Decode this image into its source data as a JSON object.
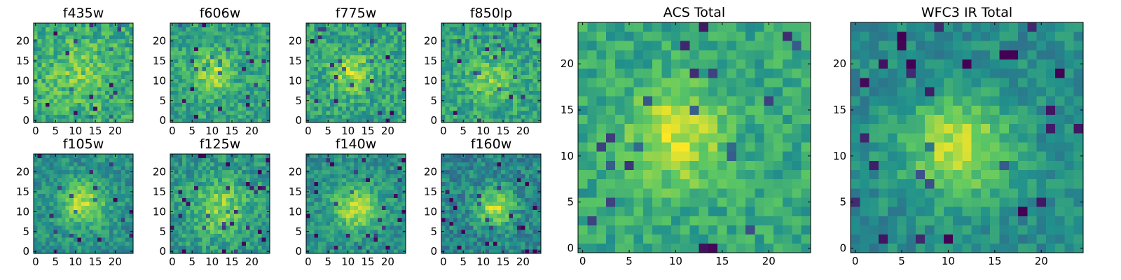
{
  "figure": {
    "colormap": "viridis",
    "background": "#ffffff",
    "colormap_stops": [
      "#440154",
      "#3b528b",
      "#21918c",
      "#5ec962",
      "#fde725"
    ]
  },
  "chart_data": [
    {
      "type": "heatmap",
      "title": "f435w",
      "grid_size": 25,
      "xlim": [
        0,
        24
      ],
      "ylim": [
        0,
        24
      ],
      "xticks": [
        0,
        5,
        10,
        15,
        20
      ],
      "yticks": [
        0,
        5,
        10,
        15,
        20
      ],
      "source_center": [
        11,
        12
      ],
      "source_sigma": 5,
      "source_amplitude": 0.15,
      "baseline": 0.62,
      "noise": 0.17,
      "seed": 11
    },
    {
      "type": "heatmap",
      "title": "f606w",
      "grid_size": 25,
      "xlim": [
        0,
        24
      ],
      "ylim": [
        0,
        24
      ],
      "xticks": [
        0,
        5,
        10,
        15,
        20
      ],
      "yticks": [
        0,
        5,
        10,
        15,
        20
      ],
      "source_center": [
        10,
        12
      ],
      "source_sigma": 3.5,
      "source_amplitude": 0.3,
      "baseline": 0.58,
      "noise": 0.15,
      "seed": 23
    },
    {
      "type": "heatmap",
      "title": "f775w",
      "grid_size": 25,
      "xlim": [
        0,
        24
      ],
      "ylim": [
        0,
        24
      ],
      "xticks": [
        0,
        5,
        10,
        15,
        20
      ],
      "yticks": [
        0,
        5,
        10,
        15,
        20
      ],
      "source_center": [
        11,
        12
      ],
      "source_sigma": 3.5,
      "source_amplitude": 0.3,
      "baseline": 0.58,
      "noise": 0.16,
      "seed": 37
    },
    {
      "type": "heatmap",
      "title": "f850lp",
      "grid_size": 25,
      "xlim": [
        0,
        24
      ],
      "ylim": [
        0,
        24
      ],
      "xticks": [
        0,
        5,
        10,
        15,
        20
      ],
      "yticks": [
        0,
        5,
        10,
        15,
        20
      ],
      "source_center": [
        12,
        10
      ],
      "source_sigma": 4,
      "source_amplitude": 0.2,
      "baseline": 0.58,
      "noise": 0.15,
      "seed": 41
    },
    {
      "type": "heatmap",
      "title": "f105w",
      "grid_size": 25,
      "xlim": [
        0,
        24
      ],
      "ylim": [
        0,
        24
      ],
      "xticks": [
        0,
        5,
        10,
        15,
        20
      ],
      "yticks": [
        0,
        5,
        10,
        15,
        20
      ],
      "source_center": [
        12,
        12
      ],
      "source_sigma": 4,
      "source_amplitude": 0.38,
      "baseline": 0.5,
      "noise": 0.13,
      "seed": 53
    },
    {
      "type": "heatmap",
      "title": "f125w",
      "grid_size": 25,
      "xlim": [
        0,
        24
      ],
      "ylim": [
        0,
        24
      ],
      "xticks": [
        0,
        5,
        10,
        15,
        20
      ],
      "yticks": [
        0,
        5,
        10,
        15,
        20
      ],
      "source_center": [
        12,
        11
      ],
      "source_sigma": 5,
      "source_amplitude": 0.28,
      "baseline": 0.52,
      "noise": 0.15,
      "seed": 67
    },
    {
      "type": "heatmap",
      "title": "f140w",
      "grid_size": 25,
      "xlim": [
        0,
        24
      ],
      "ylim": [
        0,
        24
      ],
      "xticks": [
        0,
        5,
        10,
        15,
        20
      ],
      "yticks": [
        0,
        5,
        10,
        15,
        20
      ],
      "source_center": [
        12,
        11
      ],
      "source_sigma": 4,
      "source_amplitude": 0.38,
      "baseline": 0.5,
      "noise": 0.13,
      "seed": 71
    },
    {
      "type": "heatmap",
      "title": "f160w",
      "grid_size": 25,
      "xlim": [
        0,
        24
      ],
      "ylim": [
        0,
        24
      ],
      "xticks": [
        0,
        5,
        10,
        15,
        20
      ],
      "yticks": [
        0,
        5,
        10,
        15,
        20
      ],
      "source_center": [
        13,
        11
      ],
      "source_sigma": 3.5,
      "source_amplitude": 0.4,
      "baseline": 0.45,
      "noise": 0.15,
      "seed": 83
    },
    {
      "type": "heatmap",
      "title": "ACS Total",
      "grid_size": 25,
      "xlim": [
        0,
        24
      ],
      "ylim": [
        0,
        24
      ],
      "xticks": [
        0,
        5,
        10,
        15,
        20
      ],
      "yticks": [
        0,
        5,
        10,
        15,
        20
      ],
      "source_center": [
        10,
        12
      ],
      "source_sigma": 3.5,
      "source_amplitude": 0.35,
      "baseline": 0.6,
      "noise": 0.13,
      "seed": 97
    },
    {
      "type": "heatmap",
      "title": "WFC3 IR Total",
      "grid_size": 25,
      "xlim": [
        0,
        24
      ],
      "ylim": [
        0,
        24
      ],
      "xticks": [
        0,
        5,
        10,
        15,
        20
      ],
      "yticks": [
        0,
        5,
        10,
        15,
        20
      ],
      "source_center": [
        11,
        11
      ],
      "source_sigma": 4,
      "source_amplitude": 0.42,
      "baseline": 0.48,
      "noise": 0.11,
      "seed": 109
    }
  ]
}
